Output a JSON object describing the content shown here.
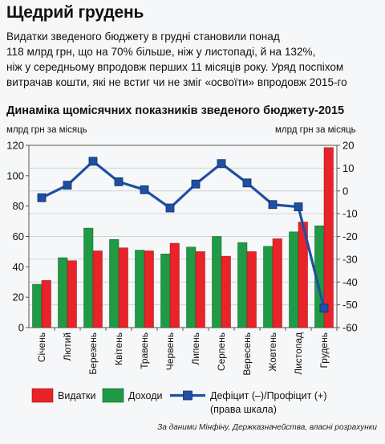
{
  "headline": "Щедрий грудень",
  "lead": [
    "Видатки зведеного бюджету в грудні становили понад",
    "118 млрд грн, що на 70% більше, ніж у листопаді, й на 132%,",
    "ніж у середньому впродовж перших 11 місяців року. Уряд поспіхом",
    "витрачав кошти, які не встиг чи не зміг «освоїти» впродовж 2015-го"
  ],
  "source": "За даними Мінфіну, Держказначейства, власні розрахунки",
  "chart_data": {
    "type": "bar",
    "title": "Динаміка щомісячних показників зведеного бюджету-2015",
    "ylabel": "млрд грн за місяць",
    "y2label": "млрд грн за місяць",
    "ylim": [
      0,
      120
    ],
    "y2lim": [
      -60,
      20
    ],
    "yticks": [
      0,
      20,
      40,
      60,
      80,
      100,
      120
    ],
    "y2ticks": [
      -60,
      -50,
      -40,
      -30,
      -20,
      -10,
      0,
      10,
      20
    ],
    "grid": true,
    "categories": [
      "Січень",
      "Лютий",
      "Березень",
      "Квітень",
      "Травень",
      "Червень",
      "Липень",
      "Серпень",
      "Вересень",
      "Жовтень",
      "Листопад",
      "Грудень"
    ],
    "series": [
      {
        "name": "Доходи",
        "type": "bar",
        "color": "#1f9a45",
        "values": [
          28.5,
          46,
          65.5,
          58,
          51,
          48.5,
          53,
          60,
          56,
          53.5,
          63,
          67
        ]
      },
      {
        "name": "Видатки",
        "type": "bar",
        "color": "#e8232a",
        "values": [
          31,
          44,
          50.5,
          52.5,
          50.5,
          55.5,
          50,
          47,
          50,
          58.5,
          69.5,
          118.5
        ]
      },
      {
        "name": "Дефіцит (–)/Профіцит (+)",
        "name2": "(права шкала)",
        "type": "line",
        "axis": "right",
        "color": "#1f4fa3",
        "values": [
          -3,
          2.5,
          13,
          4,
          0.5,
          -7.5,
          3,
          12,
          3.5,
          -6,
          -7,
          -51.5
        ]
      }
    ],
    "legend": "bottom"
  }
}
